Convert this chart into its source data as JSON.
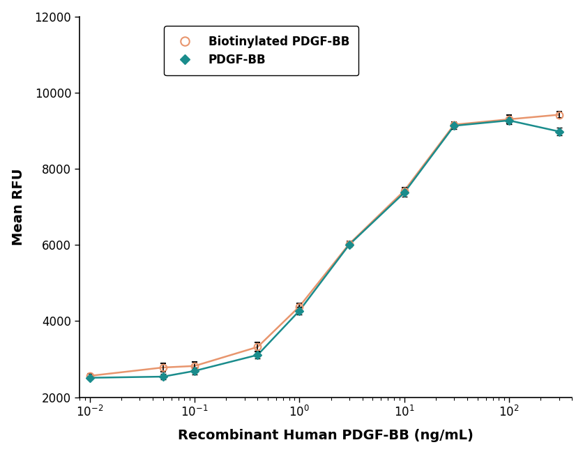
{
  "xlabel": "Recombinant Human PDGF-BB (ng/mL)",
  "ylabel": "Mean RFU",
  "ylim": [
    2000,
    12000
  ],
  "yticks": [
    2000,
    4000,
    6000,
    8000,
    10000,
    12000
  ],
  "xlim": [
    0.008,
    400
  ],
  "background_color": "#ffffff",
  "biotinylated": {
    "x": [
      0.01,
      0.05,
      0.1,
      0.4,
      1.0,
      3.0,
      10.0,
      30.0,
      100.0,
      300.0
    ],
    "y": [
      2560,
      2780,
      2820,
      3320,
      4380,
      6030,
      7420,
      9160,
      9300,
      9420
    ],
    "yerr": [
      50,
      110,
      100,
      120,
      90,
      70,
      90,
      75,
      110,
      80
    ],
    "color": "#E8956D",
    "marker": "o",
    "marker_facecolor": "none",
    "marker_edgecolor": "#E8956D",
    "line_color": "#E8956D",
    "label": "Biotinylated PDGF-BB",
    "markersize": 7
  },
  "pdgfbb": {
    "x": [
      0.01,
      0.05,
      0.1,
      0.4,
      1.0,
      3.0,
      10.0,
      30.0,
      100.0,
      300.0
    ],
    "y": [
      2510,
      2540,
      2690,
      3110,
      4270,
      6010,
      7370,
      9130,
      9270,
      8980
    ],
    "yerr": [
      45,
      75,
      85,
      95,
      100,
      65,
      110,
      85,
      95,
      95
    ],
    "color": "#1a8c8c",
    "marker": "D",
    "marker_facecolor": "#1a8c8c",
    "marker_edgecolor": "#1a8c8c",
    "line_color": "#1a8c8c",
    "label": "PDGF-BB",
    "markersize": 6
  }
}
